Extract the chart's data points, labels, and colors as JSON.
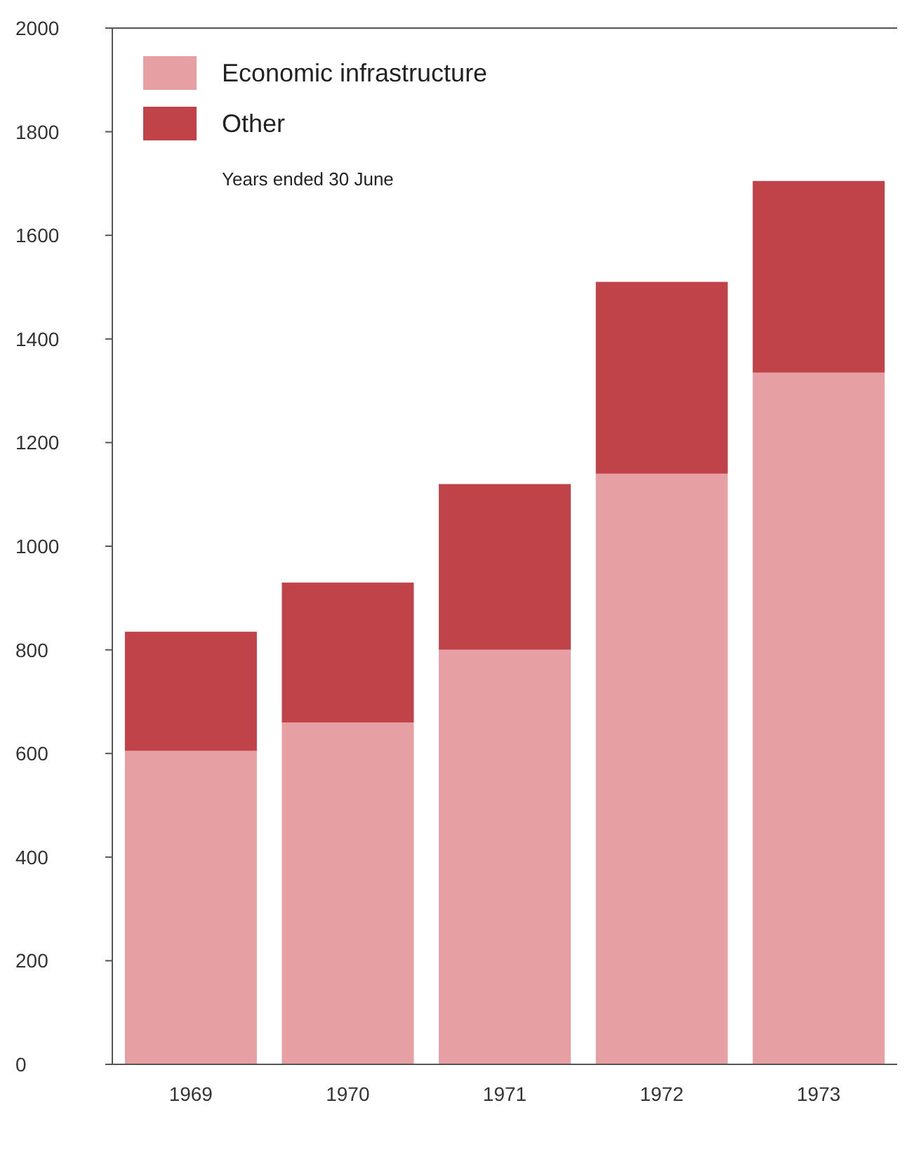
{
  "chart_data": {
    "type": "bar",
    "stacked": true,
    "categories": [
      "1969",
      "1970",
      "1971",
      "1972",
      "1973"
    ],
    "series": [
      {
        "name": "Economic infrastructure",
        "color": "#e6a0a4",
        "values": [
          605,
          660,
          800,
          1140,
          1335
        ]
      },
      {
        "name": "Other",
        "color": "#c0434a",
        "values": [
          230,
          270,
          320,
          370,
          370
        ]
      }
    ],
    "ylim": [
      0,
      2000
    ],
    "yticks": [
      0,
      200,
      400,
      600,
      800,
      1000,
      1200,
      1400,
      1600,
      1800,
      2000
    ],
    "legend": "top left",
    "annotations": [
      "Years ended 30 June"
    ]
  }
}
